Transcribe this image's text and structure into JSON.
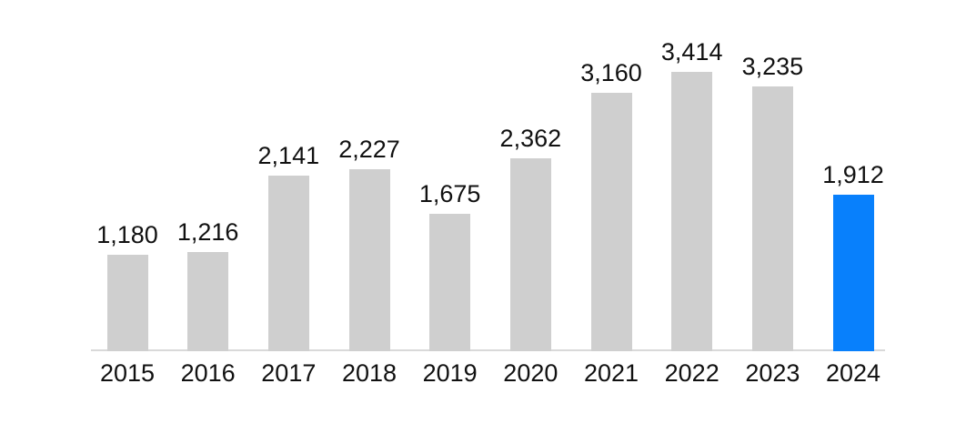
{
  "chart_data": {
    "type": "bar",
    "title": "",
    "xlabel": "",
    "ylabel": "",
    "categories": [
      "2015",
      "2016",
      "2017",
      "2018",
      "2019",
      "2020",
      "2021",
      "2022",
      "2023",
      "2024"
    ],
    "values": [
      1180,
      1216,
      2141,
      2227,
      1675,
      2362,
      3160,
      3414,
      3235,
      1912
    ],
    "value_labels": [
      "1,180",
      "1,216",
      "2,141",
      "2,227",
      "1,675",
      "2,362",
      "3,160",
      "3,414",
      "3,235",
      "1,912"
    ],
    "ylim": [
      0,
      3500
    ],
    "grid": false,
    "legend": false,
    "y_axis_shown": false,
    "highlight_index": 9,
    "colors": {
      "bar": "#cfcfcf",
      "highlight": "#0880fc",
      "axis_line": "#d9d9d9",
      "label_text": "#111111",
      "background": "#ffffff"
    }
  }
}
